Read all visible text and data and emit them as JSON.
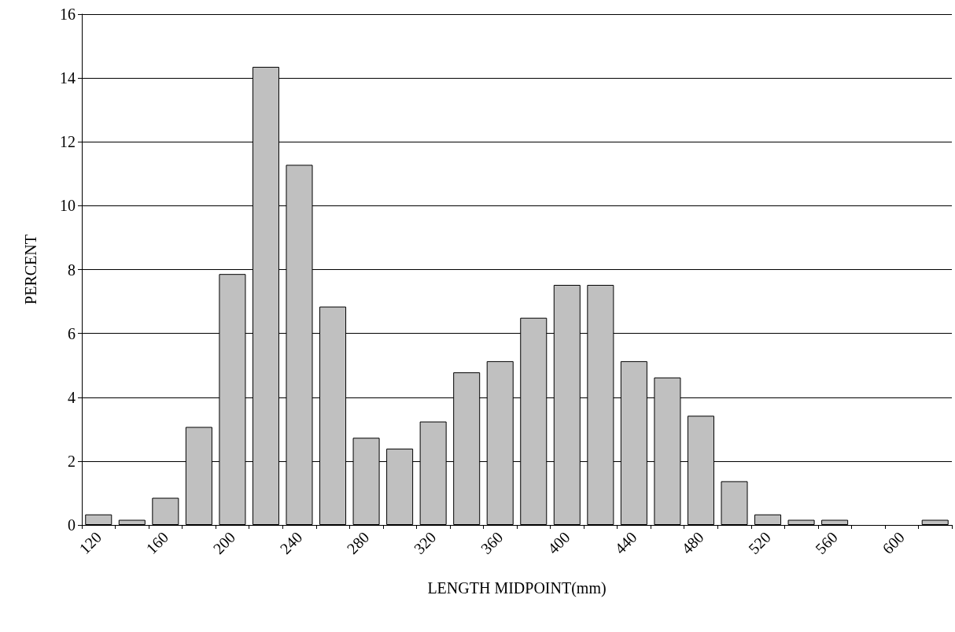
{
  "chart_data": {
    "type": "bar",
    "xlabel": "LENGTH MIDPOINT(mm)",
    "ylabel": "PERCENT",
    "categories": [
      "120",
      null,
      "160",
      null,
      "200",
      null,
      "240",
      null,
      "280",
      null,
      "320",
      null,
      "360",
      null,
      "400",
      null,
      "440",
      null,
      "480",
      null,
      "520",
      null,
      "560",
      null,
      "600",
      null
    ],
    "values": [
      0.33,
      0.16,
      0.85,
      3.07,
      7.86,
      14.35,
      11.28,
      6.84,
      2.73,
      2.39,
      3.24,
      4.78,
      5.13,
      6.49,
      7.52,
      7.52,
      5.13,
      4.62,
      3.42,
      1.37,
      0.33,
      0.16,
      0.16,
      0,
      0,
      0.16
    ],
    "color": "#c0c0c0",
    "ylim": [
      0,
      16
    ],
    "yticks": [
      0,
      2,
      4,
      6,
      8,
      10,
      12,
      14,
      16
    ],
    "grid": "y"
  }
}
